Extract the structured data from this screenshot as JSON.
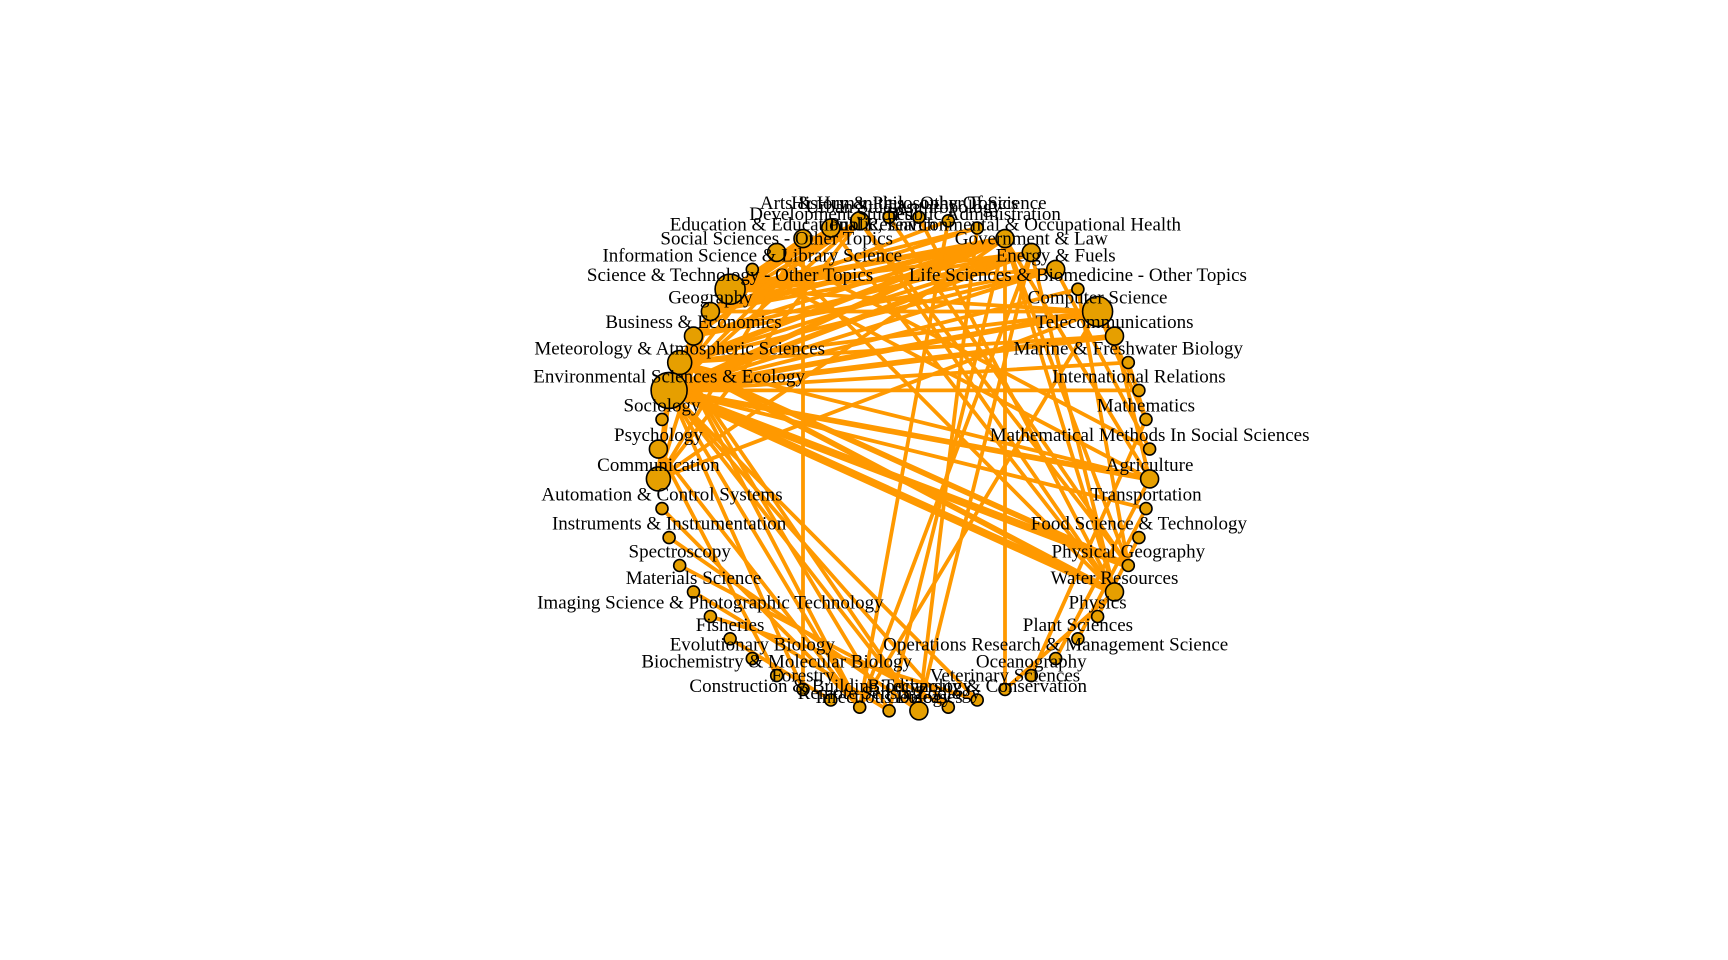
{
  "graph": {
    "type": "circular-network",
    "node_fill": "#E69F00",
    "node_stroke": "#000000",
    "edge_color": "#FF9900",
    "nodes": [
      {
        "id": "arts-humanities",
        "label": "Arts & Humanities - Other Topics",
        "size": 1
      },
      {
        "id": "history-philosophy",
        "label": "History & Philosophy Of Science",
        "size": 1
      },
      {
        "id": "urban-studies",
        "label": "Urban Studies",
        "size": 2
      },
      {
        "id": "anthropology",
        "label": "Anthropology",
        "size": 1
      },
      {
        "id": "development-studies",
        "label": "Development Studies",
        "size": 2
      },
      {
        "id": "public-administration",
        "label": "Public Administration",
        "size": 1
      },
      {
        "id": "education-research",
        "label": "Education & Educational Research",
        "size": 2
      },
      {
        "id": "public-health",
        "label": "Public, Environmental & Occupational Health",
        "size": 2
      },
      {
        "id": "social-sciences-other",
        "label": "Social Sciences - Other Topics",
        "size": 2
      },
      {
        "id": "government-law",
        "label": "Government & Law",
        "size": 2
      },
      {
        "id": "info-science",
        "label": "Information Science & Library Science",
        "size": 1
      },
      {
        "id": "energy-fuels",
        "label": "Energy & Fuels",
        "size": 2
      },
      {
        "id": "science-technology-other",
        "label": "Science & Technology - Other Topics",
        "size": 4
      },
      {
        "id": "life-sciences",
        "label": "Life Sciences & Biomedicine - Other Topics",
        "size": 1
      },
      {
        "id": "geography",
        "label": "Geography",
        "size": 2
      },
      {
        "id": "computer-science",
        "label": "Computer Science",
        "size": 4
      },
      {
        "id": "business-economics",
        "label": "Business & Economics",
        "size": 2
      },
      {
        "id": "telecommunications",
        "label": "Telecommunications",
        "size": 2
      },
      {
        "id": "meteorology",
        "label": "Meteorology & Atmospheric Sciences",
        "size": 3
      },
      {
        "id": "marine-biology",
        "label": "Marine & Freshwater Biology",
        "size": 1
      },
      {
        "id": "environmental-sciences",
        "label": "Environmental Sciences & Ecology",
        "size": 5
      },
      {
        "id": "international-relations",
        "label": "International Relations",
        "size": 1
      },
      {
        "id": "sociology",
        "label": "Sociology",
        "size": 1
      },
      {
        "id": "mathematics",
        "label": "Mathematics",
        "size": 1
      },
      {
        "id": "psychology",
        "label": "Psychology",
        "size": 2
      },
      {
        "id": "math-methods-social",
        "label": "Mathematical Methods In Social Sciences",
        "size": 1
      },
      {
        "id": "communication",
        "label": "Communication",
        "size": 3
      },
      {
        "id": "agriculture",
        "label": "Agriculture",
        "size": 2
      },
      {
        "id": "automation",
        "label": "Automation & Control Systems",
        "size": 1
      },
      {
        "id": "transportation",
        "label": "Transportation",
        "size": 1
      },
      {
        "id": "instruments",
        "label": "Instruments & Instrumentation",
        "size": 1
      },
      {
        "id": "food-science",
        "label": "Food Science & Technology",
        "size": 1
      },
      {
        "id": "spectroscopy",
        "label": "Spectroscopy",
        "size": 1
      },
      {
        "id": "physical-geography",
        "label": "Physical Geography",
        "size": 1
      },
      {
        "id": "materials-science",
        "label": "Materials Science",
        "size": 1
      },
      {
        "id": "water-resources",
        "label": "Water Resources",
        "size": 2
      },
      {
        "id": "imaging-science",
        "label": "Imaging Science & Photographic Technology",
        "size": 1
      },
      {
        "id": "physics",
        "label": "Physics",
        "size": 1
      },
      {
        "id": "fisheries",
        "label": "Fisheries",
        "size": 1
      },
      {
        "id": "plant-sciences",
        "label": "Plant Sciences",
        "size": 1
      },
      {
        "id": "evolutionary-biology",
        "label": "Evolutionary Biology",
        "size": 1
      },
      {
        "id": "operations-research",
        "label": "Operations Research & Management Science",
        "size": 1
      },
      {
        "id": "biochemistry",
        "label": "Biochemistry & Molecular Biology",
        "size": 1
      },
      {
        "id": "oceanography",
        "label": "Oceanography",
        "size": 1
      },
      {
        "id": "forestry",
        "label": "Forestry",
        "size": 1
      },
      {
        "id": "veterinary-sciences",
        "label": "Veterinary Sciences",
        "size": 1
      },
      {
        "id": "construction",
        "label": "Construction & Building Technology",
        "size": 1
      },
      {
        "id": "biodiversity",
        "label": "Biodiversity & Conservation",
        "size": 1
      },
      {
        "id": "remote-sensing",
        "label": "Remote Sensing",
        "size": 1
      },
      {
        "id": "zoology",
        "label": "Zoology",
        "size": 1
      },
      {
        "id": "infectious-diseases",
        "label": "Infectious Diseases",
        "size": 1
      },
      {
        "id": "geology",
        "label": "Geology",
        "size": 2
      }
    ],
    "edges": [
      [
        "environmental-sciences",
        "water-resources",
        4
      ],
      [
        "environmental-sciences",
        "physical-geography",
        4
      ],
      [
        "environmental-sciences",
        "agriculture",
        3
      ],
      [
        "environmental-sciences",
        "communication",
        3
      ],
      [
        "environmental-sciences",
        "computer-science",
        3
      ],
      [
        "environmental-sciences",
        "telecommunications",
        3
      ],
      [
        "environmental-sciences",
        "marine-biology",
        2
      ],
      [
        "environmental-sciences",
        "international-relations",
        2
      ],
      [
        "environmental-sciences",
        "public-health",
        3
      ],
      [
        "environmental-sciences",
        "government-law",
        3
      ],
      [
        "environmental-sciences",
        "urban-studies",
        2
      ],
      [
        "environmental-sciences",
        "development-studies",
        2
      ],
      [
        "environmental-sciences",
        "social-sciences-other",
        2
      ],
      [
        "environmental-sciences",
        "geography",
        3
      ],
      [
        "environmental-sciences",
        "business-economics",
        3
      ],
      [
        "environmental-sciences",
        "science-technology-other",
        3
      ],
      [
        "environmental-sciences",
        "life-sciences",
        2
      ],
      [
        "environmental-sciences",
        "energy-fuels",
        2
      ],
      [
        "environmental-sciences",
        "remote-sensing",
        2
      ],
      [
        "environmental-sciences",
        "biodiversity",
        2
      ],
      [
        "environmental-sciences",
        "geology",
        2
      ],
      [
        "environmental-sciences",
        "zoology",
        2
      ],
      [
        "environmental-sciences",
        "forestry",
        2
      ],
      [
        "environmental-sciences",
        "transportation",
        2
      ],
      [
        "meteorology",
        "physical-geography",
        3
      ],
      [
        "meteorology",
        "water-resources",
        3
      ],
      [
        "meteorology",
        "public-health",
        3
      ],
      [
        "meteorology",
        "government-law",
        2
      ],
      [
        "meteorology",
        "computer-science",
        2
      ],
      [
        "meteorology",
        "telecommunications",
        2
      ],
      [
        "meteorology",
        "energy-fuels",
        2
      ],
      [
        "meteorology",
        "remote-sensing",
        2
      ],
      [
        "meteorology",
        "geology",
        2
      ],
      [
        "meteorology",
        "infectious-diseases",
        2
      ],
      [
        "meteorology",
        "agriculture",
        2
      ],
      [
        "science-technology-other",
        "public-health",
        3
      ],
      [
        "science-technology-other",
        "government-law",
        2
      ],
      [
        "science-technology-other",
        "computer-science",
        2
      ],
      [
        "science-technology-other",
        "urban-studies",
        2
      ],
      [
        "science-technology-other",
        "development-studies",
        2
      ],
      [
        "science-technology-other",
        "energy-fuels",
        2
      ],
      [
        "science-technology-other",
        "public-administration",
        2
      ],
      [
        "science-technology-other",
        "education-research",
        2
      ],
      [
        "geography",
        "public-health",
        3
      ],
      [
        "geography",
        "urban-studies",
        2
      ],
      [
        "geography",
        "government-law",
        2
      ],
      [
        "geography",
        "development-studies",
        2
      ],
      [
        "geography",
        "education-research",
        2
      ],
      [
        "geography",
        "public-administration",
        2
      ],
      [
        "geography",
        "anthropology",
        2
      ],
      [
        "business-economics",
        "public-health",
        2
      ],
      [
        "business-economics",
        "government-law",
        2
      ],
      [
        "business-economics",
        "energy-fuels",
        2
      ],
      [
        "business-economics",
        "urban-studies",
        2
      ],
      [
        "computer-science",
        "telecommunications",
        2
      ],
      [
        "computer-science",
        "geography",
        2
      ],
      [
        "computer-science",
        "mathematics",
        2
      ],
      [
        "computer-science",
        "remote-sensing",
        2
      ],
      [
        "computer-science",
        "communication",
        2
      ],
      [
        "public-health",
        "communication",
        2
      ],
      [
        "public-health",
        "water-resources",
        2
      ],
      [
        "public-health",
        "physical-geography",
        2
      ],
      [
        "public-health",
        "infectious-diseases",
        2
      ],
      [
        "public-health",
        "agriculture",
        2
      ],
      [
        "public-health",
        "veterinary-sciences",
        2
      ],
      [
        "government-law",
        "water-resources",
        2
      ],
      [
        "government-law",
        "geology",
        2
      ],
      [
        "government-law",
        "remote-sensing",
        2
      ],
      [
        "urban-studies",
        "physical-geography",
        2
      ],
      [
        "urban-studies",
        "water-resources",
        2
      ],
      [
        "development-studies",
        "water-resources",
        2
      ],
      [
        "social-sciences-other",
        "water-resources",
        2
      ],
      [
        "social-sciences-other",
        "math-methods-social",
        2
      ],
      [
        "communication",
        "urban-studies",
        2
      ],
      [
        "communication",
        "education-research",
        2
      ],
      [
        "communication",
        "geography",
        2
      ],
      [
        "remote-sensing",
        "psychology",
        2
      ],
      [
        "remote-sensing",
        "automation",
        2
      ],
      [
        "geology",
        "instruments",
        2
      ],
      [
        "zoology",
        "spectroscopy",
        2
      ],
      [
        "infectious-diseases",
        "materials-science",
        2
      ],
      [
        "biodiversity",
        "imaging-science",
        2
      ],
      [
        "construction",
        "fisheries",
        2
      ],
      [
        "biochemistry",
        "psychology",
        2
      ],
      [
        "operations-research",
        "agriculture",
        2
      ],
      [
        "oceanography",
        "mathematics",
        2
      ],
      [
        "veterinary-sciences",
        "water-resources",
        2
      ],
      [
        "plant-sciences",
        "transportation",
        2
      ],
      [
        "physics",
        "food-science",
        2
      ],
      [
        "marine-biology",
        "mathematics",
        2
      ],
      [
        "international-relations",
        "computer-science",
        2
      ],
      [
        "telecommunications",
        "agriculture",
        2
      ],
      [
        "life-sciences",
        "physical-geography",
        2
      ],
      [
        "energy-fuels",
        "math-methods-social",
        2
      ],
      [
        "arts-humanities",
        "physical-geography",
        2
      ],
      [
        "history-philosophy",
        "water-resources",
        2
      ],
      [
        "anthropology",
        "remote-sensing",
        2
      ],
      [
        "public-administration",
        "geology",
        2
      ],
      [
        "education-research",
        "forestry",
        2
      ],
      [
        "info-science",
        "agriculture",
        2
      ]
    ]
  }
}
